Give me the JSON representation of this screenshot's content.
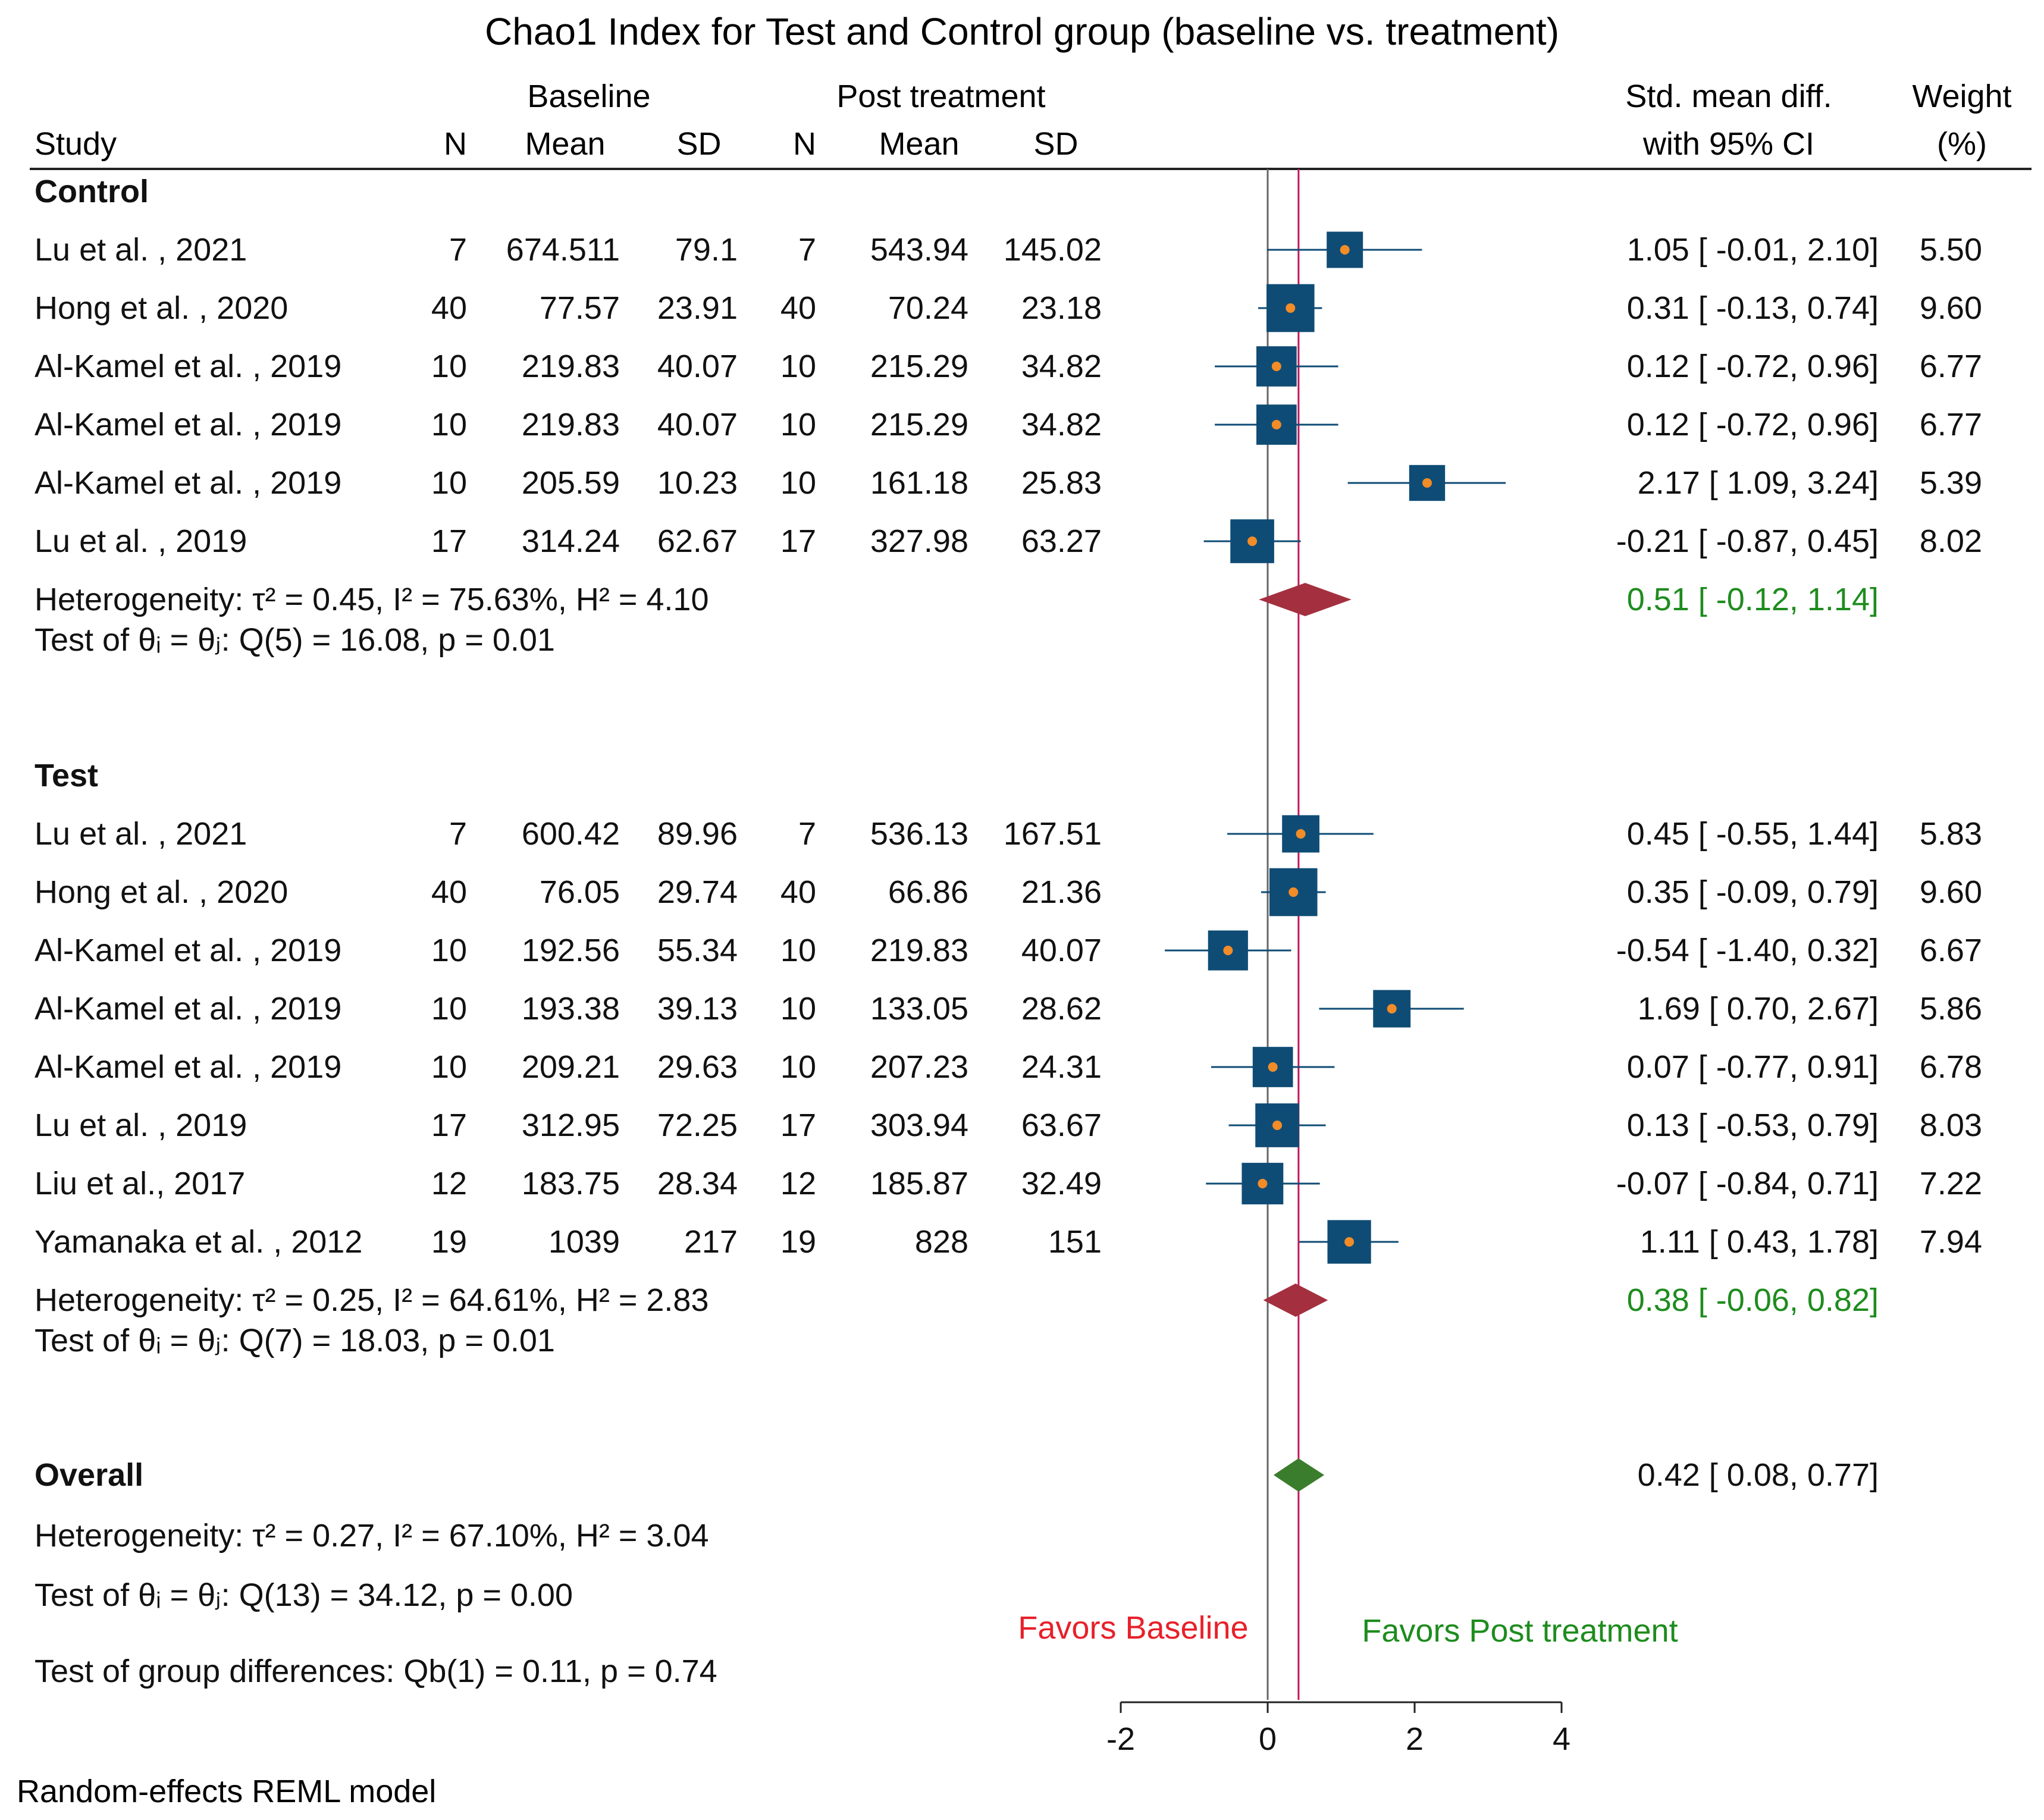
{
  "chart_data": {
    "type": "forest",
    "title": "Chao1 Index for Test and Control group (baseline vs. treatment)",
    "header": {
      "baseline": "Baseline",
      "post": "Post treatment",
      "study": "Study",
      "n": "N",
      "mean": "Mean",
      "sd": "SD",
      "smd_line1": "Std. mean diff.",
      "smd_line2": "with 95% CI",
      "weight_line1": "Weight",
      "weight_line2": "(%)"
    },
    "x_axis": {
      "range": [
        -2,
        4
      ],
      "ticks": [
        -2,
        0,
        2,
        4
      ],
      "tick_labels": [
        "-2",
        "0",
        "2",
        "4"
      ],
      "reference_line": 0,
      "overall_line": 0.42
    },
    "favors_left": "Favors Baseline",
    "favors_right": "Favors Post treatment",
    "colors": {
      "title": "#1f3864",
      "marker": "#0f4c75",
      "marker_dot": "#f28c28",
      "subgroup_diamond": "#a4303f",
      "overall_diamond": "#3a7d2c",
      "green_text": "#1e8c1e",
      "red_text": "#e8202a",
      "overall_line": "#c2185b",
      "zero_line": "#666666"
    },
    "groups": [
      {
        "name": "Control",
        "studies": [
          {
            "study": "Lu et al. , 2021",
            "n1": "7",
            "mean1": "674.511",
            "sd1": "79.1",
            "n2": "7",
            "mean2": "543.94",
            "sd2": "145.02",
            "smd": 1.05,
            "lo": -0.01,
            "hi": 2.1,
            "ci_text": "1.05 [  -0.01,   2.10]",
            "weight": "5.50",
            "weight_val": 5.5
          },
          {
            "study": "Hong et al. , 2020",
            "n1": "40",
            "mean1": "77.57",
            "sd1": "23.91",
            "n2": "40",
            "mean2": "70.24",
            "sd2": "23.18",
            "smd": 0.31,
            "lo": -0.13,
            "hi": 0.74,
            "ci_text": "0.31 [  -0.13,   0.74]",
            "weight": "9.60",
            "weight_val": 9.6
          },
          {
            "study": "Al-Kamel et al. , 2019",
            "n1": "10",
            "mean1": "219.83",
            "sd1": "40.07",
            "n2": "10",
            "mean2": "215.29",
            "sd2": "34.82",
            "smd": 0.12,
            "lo": -0.72,
            "hi": 0.96,
            "ci_text": "0.12 [  -0.72,   0.96]",
            "weight": "6.77",
            "weight_val": 6.77
          },
          {
            "study": "Al-Kamel et al. , 2019",
            "n1": "10",
            "mean1": "219.83",
            "sd1": "40.07",
            "n2": "10",
            "mean2": "215.29",
            "sd2": "34.82",
            "smd": 0.12,
            "lo": -0.72,
            "hi": 0.96,
            "ci_text": "0.12 [  -0.72,   0.96]",
            "weight": "6.77",
            "weight_val": 6.77
          },
          {
            "study": "Al-Kamel et al. , 2019",
            "n1": "10",
            "mean1": "205.59",
            "sd1": "10.23",
            "n2": "10",
            "mean2": "161.18",
            "sd2": "25.83",
            "smd": 2.17,
            "lo": 1.09,
            "hi": 3.24,
            "ci_text": "2.17 [   1.09,   3.24]",
            "weight": "5.39",
            "weight_val": 5.39
          },
          {
            "study": "Lu et al. , 2019",
            "n1": "17",
            "mean1": "314.24",
            "sd1": "62.67",
            "n2": "17",
            "mean2": "327.98",
            "sd2": "63.27",
            "smd": -0.21,
            "lo": -0.87,
            "hi": 0.45,
            "ci_text": "-0.21 [  -0.87,   0.45]",
            "weight": "8.02",
            "weight_val": 8.02
          }
        ],
        "heterogeneity": "Heterogeneity: τ² = 0.45, I² = 75.63%, H² = 4.10",
        "test": "Test of θᵢ = θⱼ: Q(5) = 16.08, p = 0.01",
        "pooled": {
          "smd": 0.51,
          "lo": -0.12,
          "hi": 1.14,
          "ci_text": "0.51 [ -0.12,   1.14]"
        }
      },
      {
        "name": "Test",
        "studies": [
          {
            "study": "Lu et al. , 2021",
            "n1": "7",
            "mean1": "600.42",
            "sd1": "89.96",
            "n2": "7",
            "mean2": "536.13",
            "sd2": "167.51",
            "smd": 0.45,
            "lo": -0.55,
            "hi": 1.44,
            "ci_text": "0.45 [  -0.55,   1.44]",
            "weight": "5.83",
            "weight_val": 5.83
          },
          {
            "study": "Hong et al. , 2020",
            "n1": "40",
            "mean1": "76.05",
            "sd1": "29.74",
            "n2": "40",
            "mean2": "66.86",
            "sd2": "21.36",
            "smd": 0.35,
            "lo": -0.09,
            "hi": 0.79,
            "ci_text": "0.35 [  -0.09,   0.79]",
            "weight": "9.60",
            "weight_val": 9.6
          },
          {
            "study": "Al-Kamel et al. , 2019",
            "n1": "10",
            "mean1": "192.56",
            "sd1": "55.34",
            "n2": "10",
            "mean2": "219.83",
            "sd2": "40.07",
            "smd": -0.54,
            "lo": -1.4,
            "hi": 0.32,
            "ci_text": "-0.54 [  -1.40,   0.32]",
            "weight": "6.67",
            "weight_val": 6.67
          },
          {
            "study": "Al-Kamel et al. , 2019",
            "n1": "10",
            "mean1": "193.38",
            "sd1": "39.13",
            "n2": "10",
            "mean2": "133.05",
            "sd2": "28.62",
            "smd": 1.69,
            "lo": 0.7,
            "hi": 2.67,
            "ci_text": "1.69 [   0.70,   2.67]",
            "weight": "5.86",
            "weight_val": 5.86
          },
          {
            "study": "Al-Kamel et al. , 2019",
            "n1": "10",
            "mean1": "209.21",
            "sd1": "29.63",
            "n2": "10",
            "mean2": "207.23",
            "sd2": "24.31",
            "smd": 0.07,
            "lo": -0.77,
            "hi": 0.91,
            "ci_text": "0.07 [  -0.77,   0.91]",
            "weight": "6.78",
            "weight_val": 6.78
          },
          {
            "study": "Lu et al. , 2019",
            "n1": "17",
            "mean1": "312.95",
            "sd1": "72.25",
            "n2": "17",
            "mean2": "303.94",
            "sd2": "63.67",
            "smd": 0.13,
            "lo": -0.53,
            "hi": 0.79,
            "ci_text": "0.13 [  -0.53,   0.79]",
            "weight": "8.03",
            "weight_val": 8.03
          },
          {
            "study": "Liu et al., 2017",
            "n1": "12",
            "mean1": "183.75",
            "sd1": "28.34",
            "n2": "12",
            "mean2": "185.87",
            "sd2": "32.49",
            "smd": -0.07,
            "lo": -0.84,
            "hi": 0.71,
            "ci_text": "-0.07 [  -0.84,   0.71]",
            "weight": "7.22",
            "weight_val": 7.22
          },
          {
            "study": "Yamanaka et al. , 2012",
            "n1": "19",
            "mean1": "1039",
            "sd1": "217",
            "n2": "19",
            "mean2": "828",
            "sd2": "151",
            "smd": 1.11,
            "lo": 0.43,
            "hi": 1.78,
            "ci_text": "1.11 [   0.43,   1.78]",
            "weight": "7.94",
            "weight_val": 7.94
          }
        ],
        "heterogeneity": "Heterogeneity: τ² = 0.25, I² = 64.61%, H² = 2.83",
        "test": "Test of θᵢ = θⱼ: Q(7) = 18.03, p = 0.01",
        "pooled": {
          "smd": 0.38,
          "lo": -0.06,
          "hi": 0.82,
          "ci_text": "0.38 [ -0.06,   0.82]"
        }
      }
    ],
    "overall": {
      "label": "Overall",
      "smd": 0.42,
      "lo": 0.08,
      "hi": 0.77,
      "ci_text": "0.42 [   0.08,   0.77]",
      "heterogeneity": "Heterogeneity: τ² = 0.27, I² = 67.10%, H² = 3.04",
      "test": "Test of θᵢ = θⱼ: Q(13) = 34.12, p = 0.00",
      "group_diff": "Test of group differences: Qb(1) = 0.11, p = 0.74"
    },
    "model_note": "Random-effects REML model"
  }
}
